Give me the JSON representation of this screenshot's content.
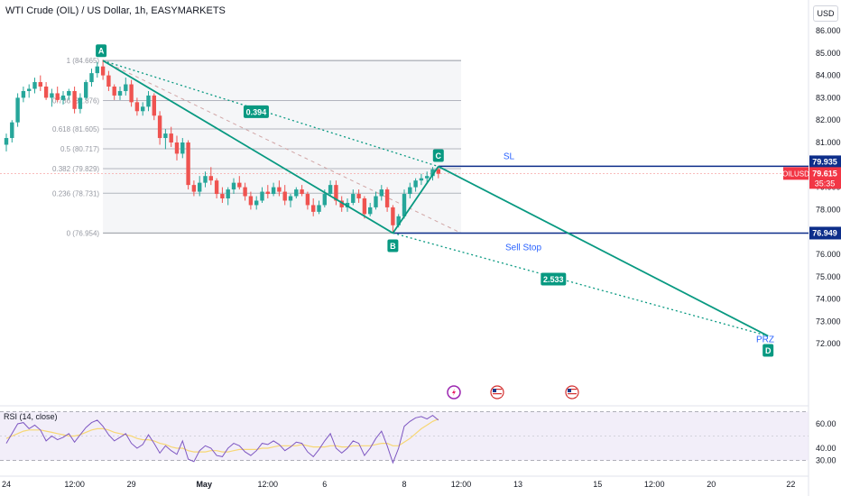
{
  "header": {
    "title": "WTI Crude (OIL) / US Dollar, 1h, EASYMARKETS",
    "currency": "USD"
  },
  "colors": {
    "bull": "#26a69a",
    "bear": "#ef5350",
    "pattern": "#089981",
    "level_line": "#0d2e8a",
    "label_blue": "#2962ff",
    "fib_line": "#b2b5be",
    "fib_bg": "#f5f6f8",
    "rsi_line": "#7e57c2",
    "rsi_ma": "#f7d774",
    "last_price": "#f23645"
  },
  "chart_data": {
    "type": "candlestick",
    "symbol": "OILUSD",
    "timeframe": "1h",
    "ylim": [
      71.6,
      86.6
    ],
    "y_ticks": [
      "86.000",
      "85.000",
      "84.000",
      "83.000",
      "82.000",
      "81.000",
      "80.000",
      "79.000",
      "78.000",
      "77.000",
      "76.000",
      "75.000",
      "74.000",
      "73.000",
      "72.000"
    ],
    "x_ticks": [
      {
        "label": "24",
        "bar": 0
      },
      {
        "label": "12:00",
        "bar": 12
      },
      {
        "label": "29",
        "bar": 22
      },
      {
        "label": "May",
        "bar": 34
      },
      {
        "label": "12:00",
        "bar": 46
      },
      {
        "label": "6",
        "bar": 56
      },
      {
        "label": "8",
        "bar": 70
      },
      {
        "label": "12:00",
        "bar": 80
      },
      {
        "label": "13",
        "bar": 90
      },
      {
        "label": "15",
        "bar": 104
      },
      {
        "label": "12:00",
        "bar": 114
      },
      {
        "label": "20",
        "bar": 124
      },
      {
        "label": "22",
        "bar": 138
      }
    ],
    "candles": [
      [
        80.9,
        81.4,
        80.6,
        81.2
      ],
      [
        81.2,
        82.0,
        81.0,
        81.9
      ],
      [
        81.9,
        83.2,
        81.7,
        83.0
      ],
      [
        83.0,
        83.5,
        82.8,
        83.3
      ],
      [
        83.3,
        83.6,
        83.0,
        83.4
      ],
      [
        83.4,
        83.9,
        83.2,
        83.7
      ],
      [
        83.7,
        84.0,
        83.3,
        83.5
      ],
      [
        83.5,
        83.7,
        82.9,
        83.0
      ],
      [
        83.0,
        83.4,
        82.6,
        83.2
      ],
      [
        83.2,
        83.5,
        82.8,
        82.9
      ],
      [
        82.9,
        83.3,
        82.7,
        83.1
      ],
      [
        83.1,
        83.4,
        82.9,
        83.3
      ],
      [
        83.3,
        83.5,
        82.3,
        82.5
      ],
      [
        82.5,
        83.2,
        82.3,
        83.0
      ],
      [
        83.0,
        83.8,
        82.9,
        83.7
      ],
      [
        83.7,
        84.3,
        83.5,
        84.1
      ],
      [
        84.1,
        84.6,
        83.9,
        84.4
      ],
      [
        84.4,
        84.7,
        83.8,
        84.0
      ],
      [
        84.0,
        84.2,
        83.3,
        83.5
      ],
      [
        83.5,
        83.6,
        82.9,
        83.1
      ],
      [
        83.1,
        83.5,
        82.9,
        83.3
      ],
      [
        83.3,
        83.9,
        83.1,
        83.6
      ],
      [
        83.6,
        83.8,
        82.6,
        82.8
      ],
      [
        82.8,
        83.0,
        82.2,
        82.4
      ],
      [
        82.4,
        82.8,
        82.2,
        82.6
      ],
      [
        82.6,
        83.3,
        82.4,
        83.1
      ],
      [
        83.1,
        83.2,
        82.0,
        82.2
      ],
      [
        82.2,
        82.4,
        80.9,
        81.2
      ],
      [
        81.2,
        81.6,
        80.7,
        81.4
      ],
      [
        81.4,
        81.7,
        80.8,
        81.0
      ],
      [
        81.0,
        81.3,
        80.2,
        80.5
      ],
      [
        80.5,
        81.2,
        80.3,
        81.0
      ],
      [
        81.0,
        81.1,
        78.9,
        79.1
      ],
      [
        79.1,
        79.3,
        78.6,
        78.8
      ],
      [
        78.8,
        79.5,
        78.6,
        79.2
      ],
      [
        79.2,
        79.7,
        79.0,
        79.5
      ],
      [
        79.5,
        79.9,
        79.1,
        79.3
      ],
      [
        79.3,
        79.4,
        78.5,
        78.7
      ],
      [
        78.7,
        79.0,
        78.3,
        78.5
      ],
      [
        78.5,
        79.0,
        78.2,
        78.9
      ],
      [
        78.9,
        79.4,
        78.7,
        79.2
      ],
      [
        79.2,
        79.5,
        78.9,
        79.0
      ],
      [
        79.0,
        79.2,
        78.4,
        78.6
      ],
      [
        78.6,
        78.8,
        78.0,
        78.2
      ],
      [
        78.2,
        78.6,
        78.0,
        78.4
      ],
      [
        78.4,
        79.0,
        78.3,
        78.8
      ],
      [
        78.8,
        79.1,
        78.5,
        78.7
      ],
      [
        78.7,
        79.2,
        78.6,
        79.0
      ],
      [
        79.0,
        79.3,
        78.6,
        78.8
      ],
      [
        78.8,
        79.1,
        78.2,
        78.4
      ],
      [
        78.4,
        78.7,
        78.1,
        78.6
      ],
      [
        78.6,
        79.0,
        78.5,
        78.9
      ],
      [
        78.9,
        79.1,
        78.6,
        78.7
      ],
      [
        78.7,
        78.8,
        78.0,
        78.2
      ],
      [
        78.2,
        78.5,
        77.7,
        77.9
      ],
      [
        77.9,
        78.4,
        77.8,
        78.2
      ],
      [
        78.2,
        78.9,
        78.1,
        78.7
      ],
      [
        78.7,
        79.3,
        78.6,
        79.1
      ],
      [
        79.1,
        79.3,
        78.2,
        78.4
      ],
      [
        78.4,
        78.6,
        77.9,
        78.1
      ],
      [
        78.1,
        78.5,
        77.9,
        78.3
      ],
      [
        78.3,
        78.9,
        78.2,
        78.7
      ],
      [
        78.7,
        78.9,
        78.3,
        78.5
      ],
      [
        78.5,
        78.6,
        77.6,
        77.8
      ],
      [
        77.8,
        78.3,
        77.7,
        78.1
      ],
      [
        78.1,
        78.8,
        78.0,
        78.6
      ],
      [
        78.6,
        79.1,
        78.4,
        78.9
      ],
      [
        78.9,
        79.0,
        77.9,
        78.1
      ],
      [
        78.1,
        78.2,
        76.95,
        77.3
      ],
      [
        77.3,
        77.8,
        77.2,
        77.7
      ],
      [
        77.7,
        78.9,
        77.6,
        78.7
      ],
      [
        78.7,
        79.2,
        78.5,
        79.0
      ],
      [
        79.0,
        79.4,
        78.8,
        79.3
      ],
      [
        79.3,
        79.6,
        79.1,
        79.4
      ],
      [
        79.4,
        79.7,
        79.2,
        79.5
      ],
      [
        79.5,
        79.9,
        79.3,
        79.8
      ],
      [
        79.8,
        79.93,
        79.4,
        79.6
      ]
    ],
    "last_price": "79.615",
    "countdown": "35:35",
    "symbol_tag": "OILUSD",
    "levels": [
      {
        "name": "SL",
        "value": "79.935"
      },
      {
        "name": "Sell Stop",
        "value": "76.949"
      }
    ],
    "fib_levels": [
      {
        "ratio": "1",
        "value": "84.665",
        "label": "1 (84.665)"
      },
      {
        "ratio": "0.786",
        "value": "82.876",
        "label": "0.786 (82.876)"
      },
      {
        "ratio": "0.618",
        "value": "81.605",
        "label": "0.618 (81.605)"
      },
      {
        "ratio": "0.5",
        "value": "80.717",
        "label": "0.5 (80.717)"
      },
      {
        "ratio": "0.382",
        "value": "79.829",
        "label": "0.382 (79.829)"
      },
      {
        "ratio": "0.236",
        "value": "78.731",
        "label": "0.236 (78.731)"
      },
      {
        "ratio": "0",
        "value": "76.954",
        "label": "0 (76.954)"
      }
    ],
    "pattern_points": [
      {
        "label": "A",
        "bar": 17,
        "price": 84.66
      },
      {
        "label": "B",
        "bar": 68,
        "price": 76.95
      },
      {
        "label": "C",
        "bar": 76,
        "price": 79.93
      },
      {
        "label": "D",
        "bar": 134,
        "price": 72.35
      }
    ],
    "pattern_ratios": [
      "0.394",
      "2.533"
    ],
    "prz_label": "PRZ",
    "rsi": {
      "label": "RSI (14, close)",
      "ylim": [
        30,
        70
      ],
      "y_ticks": [
        "60.00",
        "40.00",
        "30.00"
      ],
      "upper": 70,
      "lower": 30,
      "values": [
        44,
        52,
        60,
        61,
        56,
        59,
        55,
        46,
        50,
        47,
        49,
        52,
        45,
        51,
        57,
        61,
        63,
        58,
        51,
        46,
        49,
        52,
        44,
        40,
        43,
        51,
        44,
        36,
        42,
        38,
        35,
        46,
        31,
        29,
        38,
        42,
        40,
        34,
        33,
        40,
        44,
        42,
        37,
        34,
        38,
        44,
        43,
        46,
        43,
        38,
        41,
        45,
        44,
        37,
        33,
        39,
        46,
        52,
        40,
        36,
        40,
        46,
        44,
        34,
        40,
        48,
        54,
        42,
        28,
        40,
        58,
        62,
        65,
        66,
        64,
        67,
        63
      ],
      "ma_values": [
        48,
        50,
        52,
        54,
        55,
        55,
        55,
        54,
        53,
        52,
        51,
        50,
        50,
        51,
        53,
        55,
        56,
        56,
        55,
        53,
        52,
        51,
        50,
        48,
        47,
        47,
        46,
        44,
        43,
        41,
        40,
        40,
        38,
        37,
        37,
        37,
        38,
        38,
        37,
        37,
        38,
        39,
        39,
        39,
        39,
        40,
        40,
        41,
        42,
        42,
        42,
        42,
        43,
        42,
        41,
        41,
        41,
        42,
        42,
        41,
        41,
        42,
        42,
        42,
        42,
        43,
        44,
        44,
        42,
        42,
        45,
        48,
        52,
        56,
        59,
        62,
        64
      ]
    }
  }
}
